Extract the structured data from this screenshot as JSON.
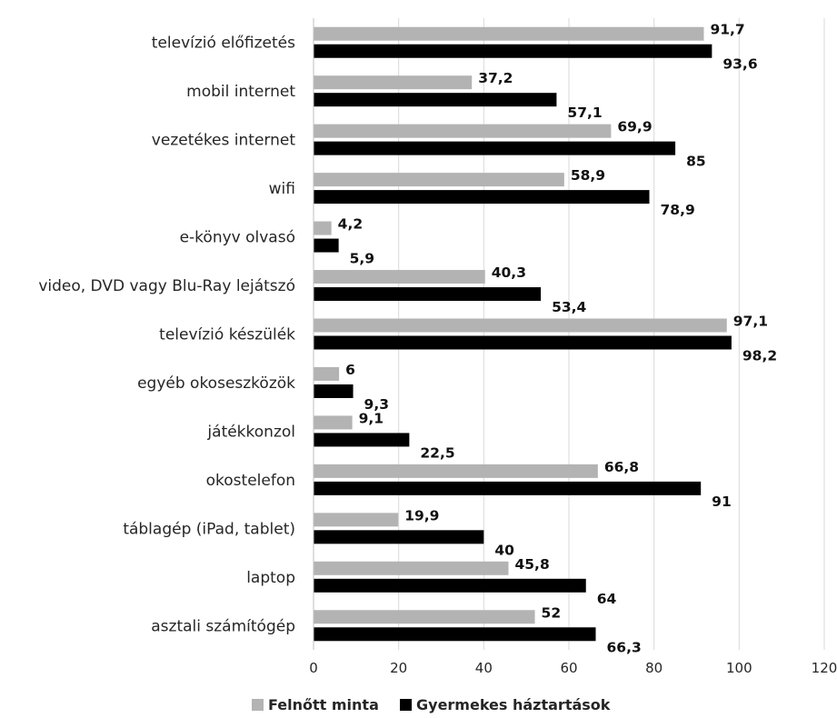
{
  "chart_data": {
    "type": "bar",
    "orientation": "horizontal",
    "categories": [
      "televízió előfizetés",
      "mobil internet",
      "vezetékes internet",
      "wifi",
      "e-könyv olvasó",
      "video, DVD vagy Blu-Ray lejátszó",
      "televízió készülék",
      "egyéb okoseszközök",
      "játékkonzol",
      "okostelefon",
      "táblagép (iPad, tablet)",
      "laptop",
      "asztali számítógép"
    ],
    "series": [
      {
        "name": "Felnőtt minta",
        "color": "#b3b3b3",
        "values": [
          91.7,
          37.2,
          69.9,
          58.9,
          4.2,
          40.3,
          97.1,
          6,
          9.1,
          66.8,
          19.9,
          45.8,
          52
        ],
        "labels": [
          "91,7",
          "37,2",
          "69,9",
          "58,9",
          "4,2",
          "40,3",
          "97,1",
          "6",
          "9,1",
          "66,8",
          "19,9",
          "45,8",
          "52"
        ]
      },
      {
        "name": "Gyermekes háztartások",
        "color": "#000000",
        "values": [
          93.6,
          57.1,
          85,
          78.9,
          5.9,
          53.4,
          98.2,
          9.3,
          22.5,
          91,
          40,
          64,
          66.3
        ],
        "labels": [
          "93,6",
          "57,1",
          "85",
          "78,9",
          "5,9",
          "53,4",
          "98,2",
          "9,3",
          "22,5",
          "91",
          "40",
          "64",
          "66,3"
        ]
      }
    ],
    "xlim": [
      0,
      120
    ],
    "x_ticks": [
      "0",
      "20",
      "40",
      "60",
      "80",
      "100",
      "120"
    ],
    "grid": true,
    "legend": "bottom"
  }
}
